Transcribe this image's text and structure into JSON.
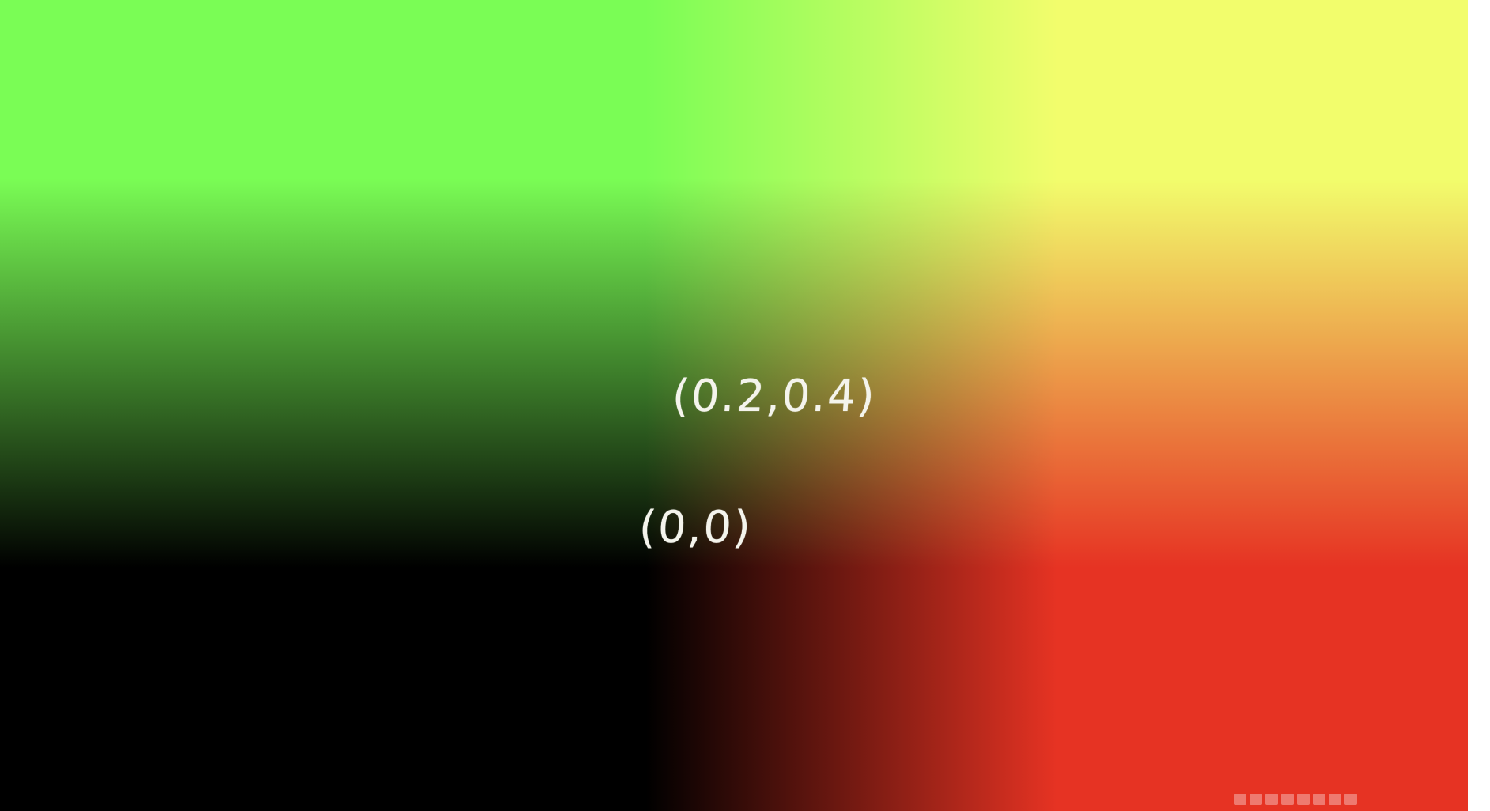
{
  "labels": {
    "point_upper": "(0.2,0.4)",
    "point_lower": "(0,0)"
  },
  "colors": {
    "top_left": "#78fb4f",
    "top_right": "#fffd55",
    "bottom_left": "#000000",
    "bottom_right": "#e63323",
    "label": "#f4f4ec",
    "right_margin": "#ffffff"
  }
}
